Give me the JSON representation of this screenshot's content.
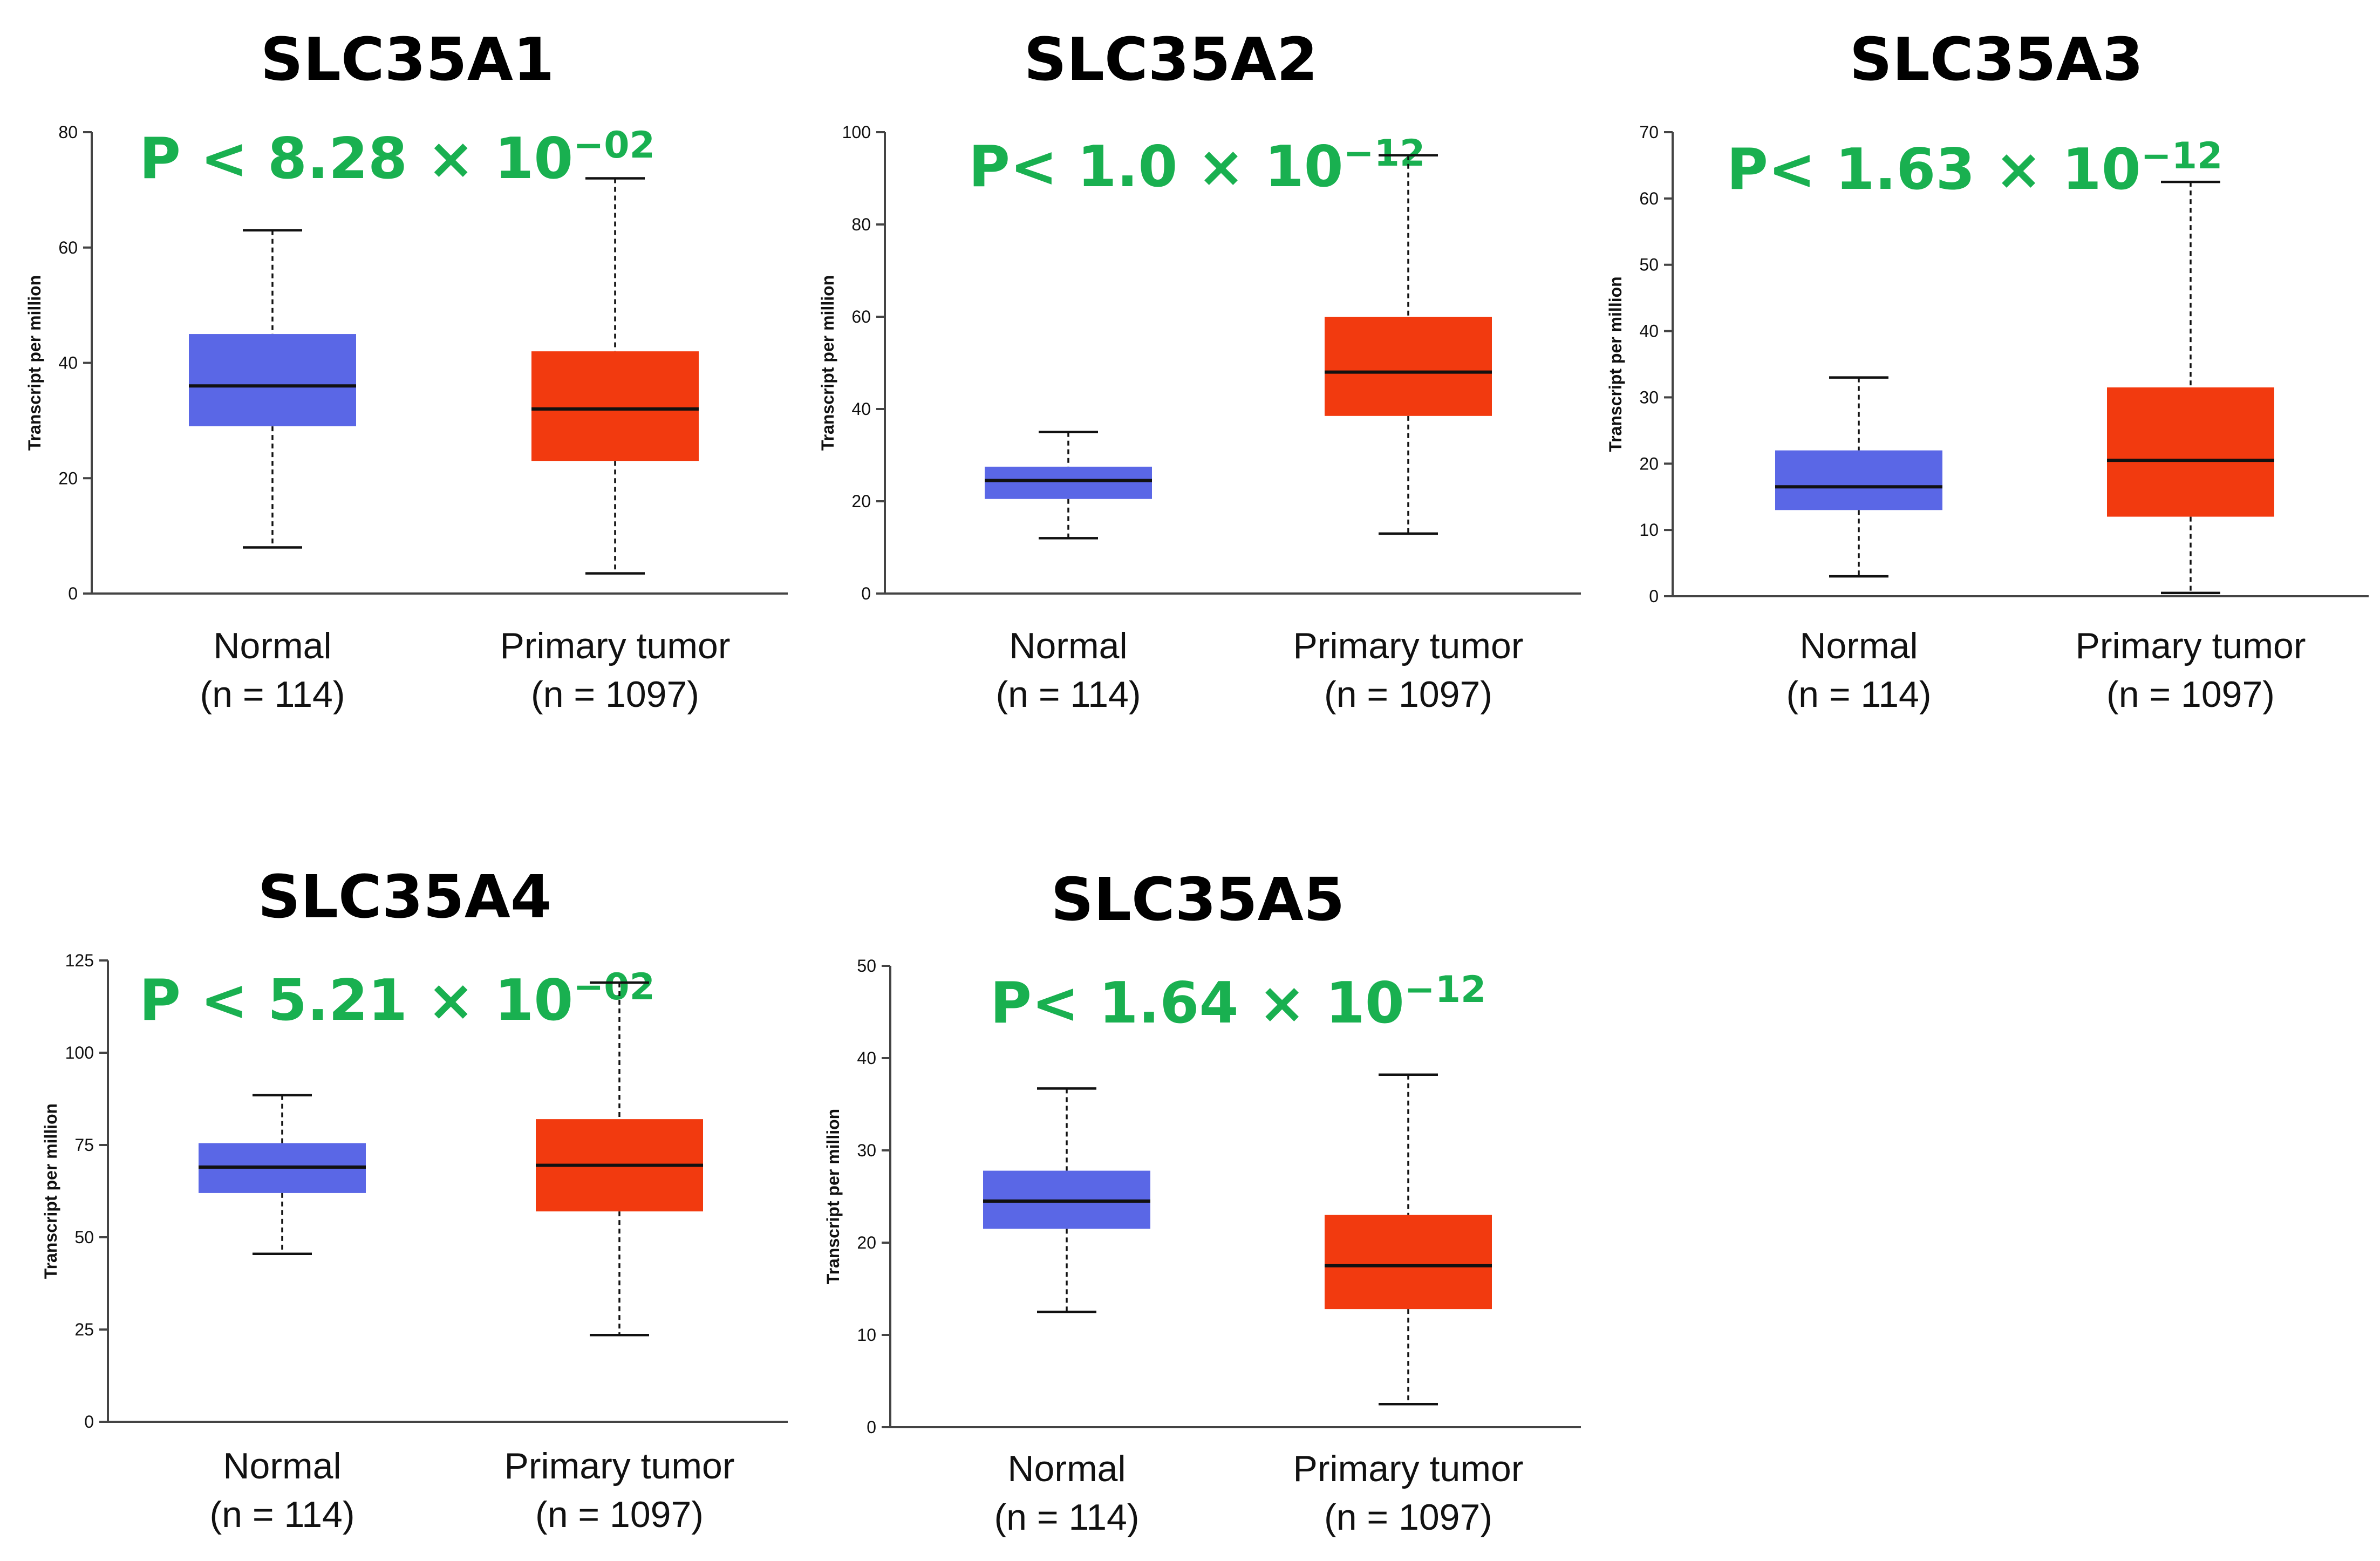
{
  "figure": {
    "colors": {
      "normal": "#5a67e6",
      "tumor": "#f23a0f",
      "pvalue": "#19b050"
    }
  },
  "chart_data": [
    {
      "type": "box",
      "title": "SLC35A1",
      "p_value": {
        "prefix": "P < 8.28 × 10",
        "exponent": "−02"
      },
      "ylabel": "Transcript per million",
      "ylim": [
        0,
        80
      ],
      "yticks": [
        0,
        20,
        40,
        60,
        80
      ],
      "groups": [
        {
          "name": "Normal",
          "n_label": "(n = 114)",
          "whisker_low": 8,
          "q1": 29,
          "median": 36,
          "q3": 45,
          "whisker_high": 63,
          "color": "#5a67e6"
        },
        {
          "name": "Primary tumor",
          "n_label": "(n = 1097)",
          "whisker_low": 3.5,
          "q1": 23,
          "median": 32,
          "q3": 42,
          "whisker_high": 72,
          "color": "#f23a0f"
        }
      ]
    },
    {
      "type": "box",
      "title": "SLC35A2",
      "p_value": {
        "prefix": "P< 1.0 × 10",
        "exponent": "−12"
      },
      "ylabel": "Transcript per million",
      "ylim": [
        0,
        100
      ],
      "yticks": [
        0,
        20,
        40,
        60,
        80,
        100
      ],
      "groups": [
        {
          "name": "Normal",
          "n_label": "(n = 114)",
          "whisker_low": 12,
          "q1": 20.5,
          "median": 24.5,
          "q3": 27.5,
          "whisker_high": 35,
          "color": "#5a67e6"
        },
        {
          "name": "Primary tumor",
          "n_label": "(n = 1097)",
          "whisker_low": 13,
          "q1": 38.5,
          "median": 48,
          "q3": 60,
          "whisker_high": 95,
          "color": "#f23a0f"
        }
      ]
    },
    {
      "type": "box",
      "title": "SLC35A3",
      "p_value": {
        "prefix": "P< 1.63 × 10",
        "exponent": "−12"
      },
      "ylabel": "Transcript per million",
      "ylim": [
        0,
        70
      ],
      "yticks": [
        0,
        10,
        20,
        30,
        40,
        50,
        60,
        70
      ],
      "groups": [
        {
          "name": "Normal",
          "n_label": "(n = 114)",
          "whisker_low": 3,
          "q1": 13,
          "median": 16.5,
          "q3": 22,
          "whisker_high": 33,
          "color": "#5a67e6"
        },
        {
          "name": "Primary tumor",
          "n_label": "(n = 1097)",
          "whisker_low": 0.5,
          "q1": 12,
          "median": 20.5,
          "q3": 31.5,
          "whisker_high": 62.5,
          "color": "#f23a0f"
        }
      ]
    },
    {
      "type": "box",
      "title": "SLC35A4",
      "p_value": {
        "prefix": "P < 5.21 × 10",
        "exponent": "−02"
      },
      "ylabel": "Transcript per million",
      "ylim": [
        0,
        125
      ],
      "yticks": [
        0,
        25,
        50,
        75,
        100,
        125
      ],
      "groups": [
        {
          "name": "Normal",
          "n_label": "(n = 114)",
          "whisker_low": 45.5,
          "q1": 62,
          "median": 69,
          "q3": 75.5,
          "whisker_high": 88.5,
          "color": "#5a67e6"
        },
        {
          "name": "Primary tumor",
          "n_label": "(n = 1097)",
          "whisker_low": 23.5,
          "q1": 57,
          "median": 69.5,
          "q3": 82,
          "whisker_high": 119,
          "color": "#f23a0f"
        }
      ]
    },
    {
      "type": "box",
      "title": "SLC35A5",
      "p_value": {
        "prefix": "P< 1.64 × 10",
        "exponent": "−12"
      },
      "ylabel": "Transcript per million",
      "ylim": [
        0,
        50
      ],
      "yticks": [
        0,
        10,
        20,
        30,
        40,
        50
      ],
      "groups": [
        {
          "name": "Normal",
          "n_label": "(n = 114)",
          "whisker_low": 12.5,
          "q1": 21.5,
          "median": 24.5,
          "q3": 27.8,
          "whisker_high": 36.7,
          "color": "#5a67e6"
        },
        {
          "name": "Primary tumor",
          "n_label": "(n = 1097)",
          "whisker_low": 2.5,
          "q1": 12.8,
          "median": 17.5,
          "q3": 23,
          "whisker_high": 38.2,
          "color": "#f23a0f"
        }
      ]
    }
  ]
}
